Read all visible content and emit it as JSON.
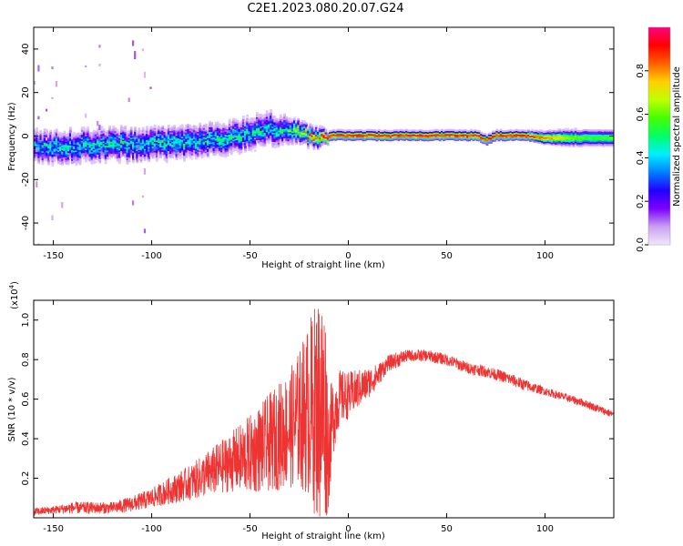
{
  "title": "C2E1.2023.080.20.07.G24",
  "chart_data": [
    {
      "type": "heatmap",
      "xlabel": "Height of straight line (km)",
      "ylabel": "Frequency (Hz)",
      "xlim": [
        -160,
        135
      ],
      "ylim": [
        -50,
        50
      ],
      "xticks": [
        -150,
        -100,
        -50,
        0,
        50,
        100
      ],
      "yticks": [
        -40,
        -20,
        0,
        20,
        40
      ],
      "colorbar": {
        "label": "Normalized spectral amplitude",
        "range": [
          0,
          1
        ],
        "ticks": [
          0.0,
          0.2,
          0.4,
          0.6,
          0.8
        ],
        "colors": [
          "#f2e8fb",
          "#c9a0f0",
          "#7b00ff",
          "#2200ff",
          "#0080ff",
          "#00f0ff",
          "#00ff66",
          "#44ff00",
          "#c0ff00",
          "#ffd000",
          "#ff6000",
          "#ff0000",
          "#ff0080"
        ]
      },
      "ridge": {
        "x": [
          -160,
          -140,
          -120,
          -100,
          -80,
          -60,
          -50,
          -40,
          -30,
          -20,
          -15,
          -10,
          0,
          10,
          20,
          30,
          40,
          50,
          60,
          65,
          70,
          75,
          80,
          90,
          100,
          110,
          120,
          135
        ],
        "center_hz": [
          -5,
          -5,
          -4,
          -4,
          -3,
          -1,
          1,
          3,
          2,
          0,
          -2,
          0,
          0,
          0,
          0,
          0,
          0,
          0,
          0,
          0,
          -2,
          0,
          0,
          0,
          -1,
          -1,
          -1,
          -1
        ],
        "halfwidth_hz": [
          5,
          5,
          5,
          5,
          5,
          5,
          5,
          5,
          4,
          3,
          3,
          1.5,
          1.5,
          1.5,
          1.5,
          1.5,
          1.5,
          1.5,
          1.5,
          1.5,
          1.5,
          1.5,
          1.5,
          1.5,
          2,
          2.5,
          2.5,
          2.5
        ],
        "amplitude": [
          0.35,
          0.4,
          0.4,
          0.4,
          0.4,
          0.4,
          0.4,
          0.4,
          0.45,
          0.7,
          0.8,
          0.95,
          0.95,
          0.95,
          0.95,
          0.95,
          0.95,
          0.95,
          0.95,
          0.95,
          0.9,
          0.95,
          0.95,
          0.95,
          0.85,
          0.7,
          0.6,
          0.6
        ]
      }
    },
    {
      "type": "line",
      "xlabel": "Height of straight line (km)",
      "ylabel": "SNR (10 * v/v)",
      "yscale_label": "(x10",
      "yscale_exp": "4",
      "yscale_close": ")",
      "xlim": [
        -160,
        135
      ],
      "ylim": [
        0,
        1.1
      ],
      "xticks": [
        -150,
        -100,
        -50,
        0,
        50,
        100
      ],
      "yticks": [
        0.2,
        0.4,
        0.6,
        0.8,
        1.0
      ],
      "color": "#ee3333",
      "series": [
        {
          "x": [
            -160,
            -150,
            -140,
            -130,
            -120,
            -110,
            -100,
            -90,
            -80,
            -70,
            -60,
            -50,
            -40,
            -30,
            -25,
            -20,
            -15,
            -12,
            -10,
            -8,
            -5,
            0,
            5,
            10,
            15,
            20,
            25,
            30,
            35,
            40,
            50,
            60,
            70,
            80,
            90,
            100,
            110,
            120,
            130,
            135
          ],
          "values": [
            0.03,
            0.04,
            0.05,
            0.05,
            0.05,
            0.07,
            0.1,
            0.14,
            0.18,
            0.23,
            0.28,
            0.32,
            0.38,
            0.45,
            0.5,
            0.55,
            0.55,
            0.55,
            0.35,
            0.5,
            0.6,
            0.62,
            0.65,
            0.68,
            0.72,
            0.78,
            0.8,
            0.82,
            0.82,
            0.82,
            0.8,
            0.76,
            0.74,
            0.71,
            0.67,
            0.64,
            0.61,
            0.58,
            0.54,
            0.52
          ],
          "spread": [
            0.02,
            0.02,
            0.03,
            0.03,
            0.03,
            0.04,
            0.05,
            0.07,
            0.09,
            0.12,
            0.15,
            0.2,
            0.25,
            0.3,
            0.35,
            0.45,
            0.6,
            0.6,
            0.3,
            0.2,
            0.15,
            0.12,
            0.1,
            0.08,
            0.06,
            0.04,
            0.04,
            0.03,
            0.03,
            0.03,
            0.03,
            0.03,
            0.03,
            0.03,
            0.03,
            0.02,
            0.02,
            0.02,
            0.02,
            0.02
          ]
        }
      ]
    }
  ]
}
